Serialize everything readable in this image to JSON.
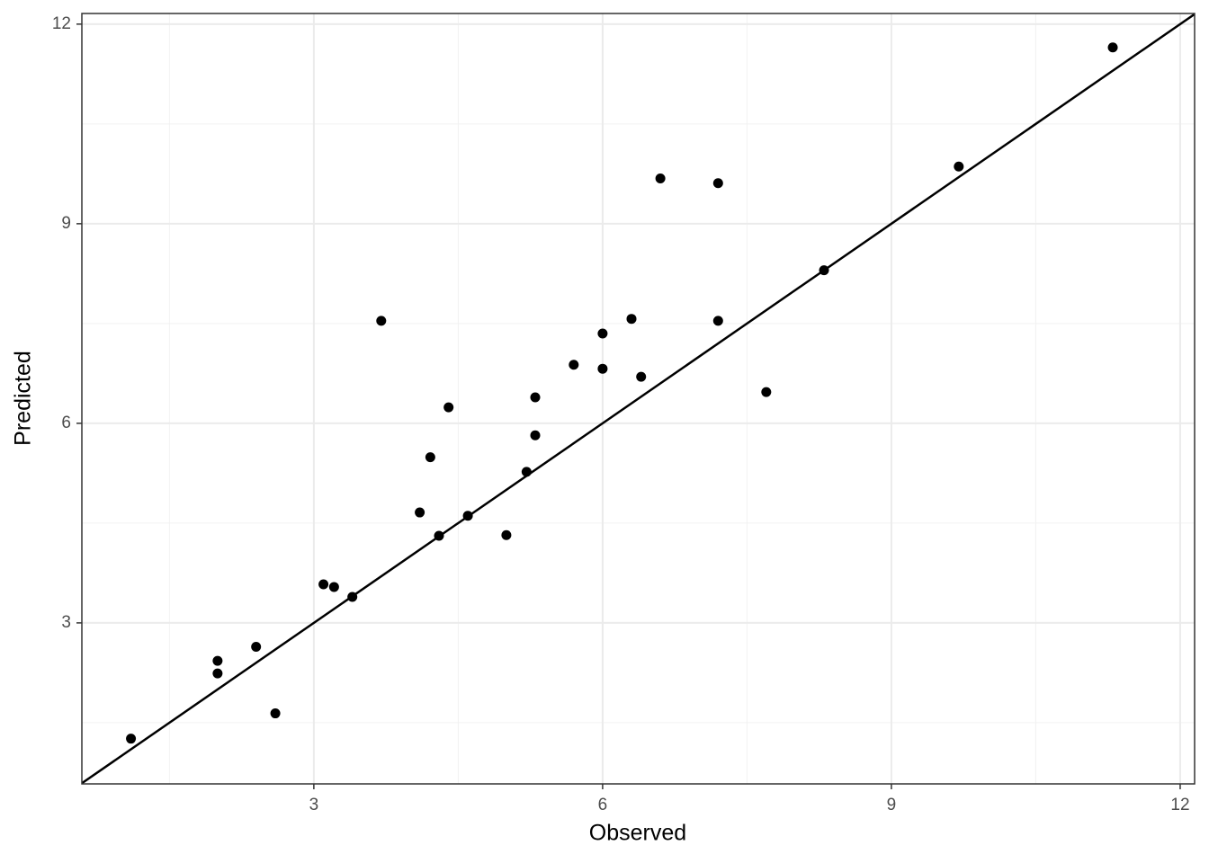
{
  "chart_data": {
    "type": "scatter",
    "x_label": "Observed",
    "y_label": "Predicted",
    "x": [
      1.1,
      2.0,
      2.0,
      2.4,
      2.6,
      3.1,
      3.21,
      3.4,
      3.7,
      4.1,
      4.21,
      4.3,
      4.4,
      4.6,
      5.0,
      5.21,
      5.3,
      5.3,
      5.7,
      6.0,
      6.0,
      6.3,
      6.4,
      6.6,
      7.2,
      7.2,
      7.7,
      8.3,
      9.7,
      11.3
    ],
    "series": [
      {
        "color": "#000000",
        "values": [
          1.26,
          2.43,
          2.24,
          2.64,
          1.64,
          3.58,
          3.54,
          3.39,
          7.54,
          4.66,
          5.49,
          4.31,
          6.24,
          4.61,
          4.32,
          5.27,
          5.82,
          6.39,
          6.88,
          7.35,
          6.82,
          7.57,
          6.7,
          9.68,
          9.61,
          7.54,
          6.47,
          8.3,
          9.86,
          11.65
        ]
      }
    ],
    "xlim": [
      0.59,
      12.15
    ],
    "ylim": [
      0.58,
      12.16
    ],
    "xticks": [
      3,
      6,
      9,
      12
    ],
    "yticks": [
      3,
      6,
      9,
      12
    ],
    "xminor": [
      1.5,
      4.5,
      7.5,
      10.5
    ],
    "yminor": [
      1.5,
      4.5,
      7.5,
      10.5
    ],
    "grid": true,
    "reference_line": {
      "slope": 1,
      "intercept": 0,
      "color": "#000000"
    }
  }
}
